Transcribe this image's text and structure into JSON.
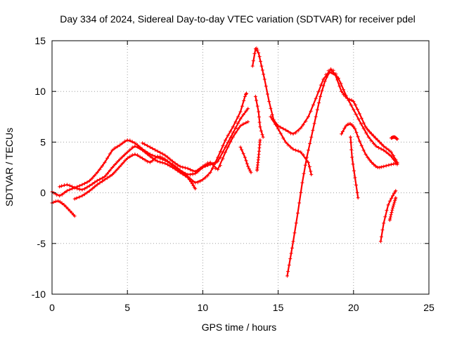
{
  "chart_data": {
    "type": "scatter",
    "title": "Day 334 of 2024, Sidereal Day-to-day VTEC variation (SDTVAR) for receiver pdel",
    "xlabel": "GPS time / hours",
    "ylabel": "SDTVAR / TECUs",
    "xlim": [
      0,
      25
    ],
    "ylim": [
      -10,
      15
    ],
    "xticks": [
      0,
      5,
      10,
      15,
      20,
      25
    ],
    "yticks": [
      -10,
      -5,
      0,
      5,
      10,
      15
    ],
    "grid": true,
    "marker": "+",
    "color": "#ff0000",
    "series": [
      {
        "name": "arc-1",
        "points": [
          [
            0,
            -1.0
          ],
          [
            0.4,
            -0.8
          ],
          [
            0.8,
            -1.2
          ],
          [
            1.2,
            -1.8
          ],
          [
            1.5,
            -2.3
          ]
        ]
      },
      {
        "name": "arc-2",
        "points": [
          [
            0,
            0.1
          ],
          [
            0.5,
            -0.3
          ],
          [
            1.0,
            0.2
          ],
          [
            1.5,
            0.5
          ],
          [
            2.0,
            0.8
          ],
          [
            2.5,
            1.2
          ],
          [
            3.0,
            2.0
          ],
          [
            3.5,
            3.0
          ],
          [
            4.0,
            4.2
          ],
          [
            4.5,
            4.7
          ],
          [
            5.0,
            5.2
          ],
          [
            5.5,
            4.9
          ],
          [
            6.0,
            4.3
          ],
          [
            6.5,
            3.8
          ],
          [
            7.0,
            3.5
          ],
          [
            7.5,
            3.2
          ],
          [
            8.0,
            2.8
          ],
          [
            8.5,
            2.2
          ],
          [
            9.0,
            1.6
          ],
          [
            9.5,
            1.0
          ],
          [
            10.0,
            1.3
          ],
          [
            10.5,
            2.0
          ],
          [
            11.0,
            3.5
          ],
          [
            11.5,
            5.2
          ],
          [
            12.0,
            6.5
          ],
          [
            12.5,
            8.0
          ],
          [
            12.8,
            9.5
          ],
          [
            12.9,
            9.8
          ]
        ]
      },
      {
        "name": "arc-3",
        "points": [
          [
            0.5,
            0.6
          ],
          [
            1.0,
            0.8
          ],
          [
            1.5,
            0.5
          ],
          [
            2.0,
            0.3
          ],
          [
            2.5,
            0.7
          ],
          [
            3.0,
            1.2
          ],
          [
            3.5,
            1.6
          ],
          [
            4.0,
            2.5
          ],
          [
            4.5,
            3.3
          ],
          [
            5.0,
            4.0
          ],
          [
            5.5,
            4.6
          ],
          [
            6.0,
            4.2
          ],
          [
            6.5,
            3.6
          ],
          [
            7.0,
            3.1
          ],
          [
            7.5,
            2.9
          ],
          [
            8.0,
            2.5
          ],
          [
            8.5,
            2.0
          ],
          [
            9.0,
            1.5
          ],
          [
            9.3,
            0.9
          ],
          [
            9.5,
            0.4
          ]
        ]
      },
      {
        "name": "arc-4",
        "points": [
          [
            1.5,
            -0.6
          ],
          [
            2.0,
            -0.3
          ],
          [
            2.5,
            0.2
          ],
          [
            3.0,
            0.8
          ],
          [
            3.5,
            1.3
          ],
          [
            4.0,
            1.8
          ],
          [
            4.5,
            2.6
          ],
          [
            5.0,
            3.4
          ],
          [
            5.5,
            3.8
          ],
          [
            6.0,
            3.4
          ],
          [
            6.5,
            3.0
          ],
          [
            7.0,
            3.6
          ],
          [
            7.5,
            3.3
          ],
          [
            8.0,
            2.7
          ],
          [
            8.5,
            2.2
          ],
          [
            9.0,
            1.8
          ],
          [
            9.5,
            1.9
          ],
          [
            10.0,
            2.5
          ],
          [
            10.5,
            2.8
          ],
          [
            11.0,
            3.1
          ],
          [
            11.5,
            4.5
          ],
          [
            12.0,
            5.9
          ],
          [
            12.5,
            7.3
          ],
          [
            13.0,
            8.3
          ]
        ]
      },
      {
        "name": "arc-5",
        "points": [
          [
            6.0,
            4.9
          ],
          [
            6.5,
            4.5
          ],
          [
            7.0,
            4.1
          ],
          [
            7.5,
            3.7
          ],
          [
            8.0,
            3.1
          ],
          [
            8.5,
            2.6
          ],
          [
            9.0,
            2.4
          ],
          [
            9.5,
            2.1
          ],
          [
            10.0,
            2.6
          ],
          [
            10.5,
            3.0
          ],
          [
            11.0,
            2.3
          ],
          [
            11.5,
            4.0
          ],
          [
            12.0,
            5.5
          ],
          [
            12.5,
            6.6
          ],
          [
            13.0,
            7.0
          ]
        ]
      },
      {
        "name": "arc-6",
        "points": [
          [
            12.5,
            4.5
          ],
          [
            12.8,
            3.5
          ],
          [
            13.0,
            2.6
          ],
          [
            13.2,
            2.0
          ]
        ]
      },
      {
        "name": "arc-7",
        "points": [
          [
            13.3,
            12.5
          ],
          [
            13.5,
            14.2
          ],
          [
            13.7,
            13.8
          ],
          [
            13.9,
            12.5
          ],
          [
            14.1,
            11.2
          ],
          [
            14.4,
            9.0
          ],
          [
            14.7,
            7.2
          ],
          [
            15.0,
            6.6
          ],
          [
            15.5,
            6.2
          ],
          [
            16.0,
            5.8
          ],
          [
            16.5,
            6.4
          ],
          [
            17.0,
            7.5
          ],
          [
            17.5,
            9.3
          ],
          [
            18.0,
            11.2
          ],
          [
            18.5,
            12.2
          ],
          [
            19.0,
            11.3
          ],
          [
            19.5,
            9.6
          ],
          [
            20.0,
            8.2
          ],
          [
            20.5,
            6.8
          ],
          [
            21.0,
            5.5
          ],
          [
            21.5,
            4.6
          ],
          [
            22.0,
            4.2
          ],
          [
            22.5,
            3.6
          ],
          [
            22.9,
            2.8
          ]
        ]
      },
      {
        "name": "arc-8",
        "points": [
          [
            13.5,
            9.5
          ],
          [
            13.7,
            8.0
          ],
          [
            13.8,
            6.5
          ],
          [
            14.0,
            5.5
          ]
        ]
      },
      {
        "name": "arc-9",
        "points": [
          [
            13.8,
            5.2
          ],
          [
            13.7,
            3.5
          ],
          [
            13.6,
            2.2
          ]
        ]
      },
      {
        "name": "arc-10",
        "points": [
          [
            14.5,
            7.5
          ],
          [
            15.0,
            6.3
          ],
          [
            15.5,
            5.0
          ],
          [
            16.0,
            4.3
          ],
          [
            16.5,
            4.0
          ],
          [
            17.0,
            3.0
          ],
          [
            17.2,
            1.8
          ]
        ]
      },
      {
        "name": "arc-11",
        "points": [
          [
            15.6,
            -8.2
          ],
          [
            15.8,
            -6.5
          ],
          [
            16.0,
            -4.8
          ],
          [
            16.3,
            -2.0
          ],
          [
            16.6,
            1.0
          ],
          [
            16.9,
            3.5
          ],
          [
            17.2,
            5.5
          ],
          [
            17.5,
            7.5
          ],
          [
            17.8,
            9.5
          ],
          [
            18.1,
            11.0
          ],
          [
            18.4,
            11.9
          ],
          [
            18.8,
            11.6
          ],
          [
            19.2,
            10.0
          ],
          [
            19.6,
            9.3
          ],
          [
            20.0,
            9.0
          ],
          [
            20.4,
            7.8
          ],
          [
            20.8,
            6.5
          ],
          [
            21.2,
            5.8
          ],
          [
            21.6,
            5.2
          ],
          [
            22.0,
            4.6
          ],
          [
            22.5,
            4.0
          ],
          [
            22.9,
            3.0
          ]
        ]
      },
      {
        "name": "arc-12",
        "points": [
          [
            19.2,
            5.8
          ],
          [
            19.5,
            6.6
          ],
          [
            19.8,
            6.8
          ],
          [
            20.1,
            6.3
          ],
          [
            20.4,
            5.1
          ],
          [
            20.8,
            3.8
          ],
          [
            21.2,
            3.0
          ],
          [
            21.6,
            2.5
          ],
          [
            22.0,
            2.6
          ],
          [
            22.5,
            2.8
          ],
          [
            22.9,
            2.9
          ]
        ]
      },
      {
        "name": "arc-13",
        "points": [
          [
            19.8,
            5.5
          ],
          [
            19.9,
            3.5
          ],
          [
            20.1,
            1.5
          ],
          [
            20.3,
            -0.5
          ]
        ]
      },
      {
        "name": "arc-14",
        "points": [
          [
            21.8,
            -4.8
          ],
          [
            22.0,
            -3.0
          ],
          [
            22.3,
            -1.2
          ],
          [
            22.6,
            -0.3
          ],
          [
            22.8,
            0.2
          ]
        ]
      },
      {
        "name": "arc-15",
        "points": [
          [
            22.4,
            -2.7
          ],
          [
            22.6,
            -1.5
          ],
          [
            22.8,
            -0.5
          ]
        ]
      },
      {
        "name": "arc-16",
        "points": [
          [
            22.5,
            5.4
          ],
          [
            22.7,
            5.5
          ],
          [
            22.9,
            5.3
          ]
        ]
      }
    ]
  }
}
